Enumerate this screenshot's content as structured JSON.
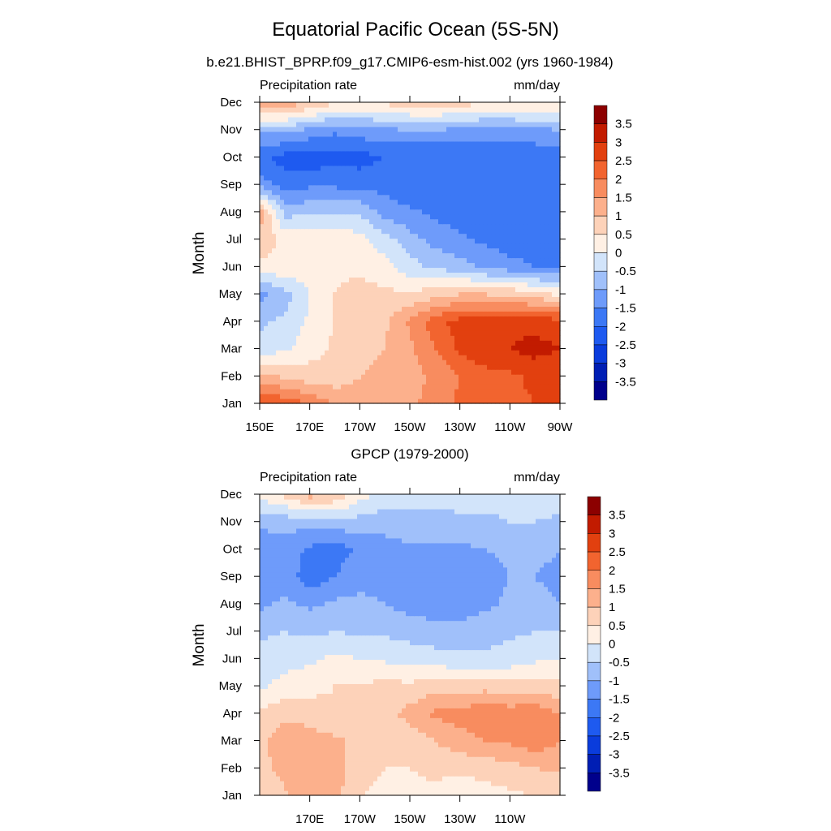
{
  "figure": {
    "title": "Equatorial Pacific Ocean (5S-5N)"
  },
  "colors": {
    "levels": [
      -3.5,
      -3,
      -2.5,
      -2,
      -1.5,
      -1,
      -0.5,
      0,
      0.5,
      1,
      1.5,
      2,
      2.5,
      3,
      3.5
    ],
    "palette": [
      "#00008c",
      "#001eb4",
      "#0a3cdc",
      "#1e5af0",
      "#3c78f5",
      "#6e9bfa",
      "#a0c0fa",
      "#d2e4fa",
      "#fff0e4",
      "#fdd2b9",
      "#fcb08c",
      "#f88c5f",
      "#f2642f",
      "#e2400f",
      "#c21b00",
      "#8c0000"
    ]
  },
  "chart_data": [
    {
      "type": "heatmap",
      "subtitle": "b.e21.BHIST_BPRP.f09_g17.CMIP6-esm-hist.002 (yrs 1960-1984)",
      "left_label": "Precipitation rate",
      "right_label": "mm/day",
      "ylabel": "Month",
      "xlabel": "",
      "x_ticks": [
        "150E",
        "170E",
        "170W",
        "150W",
        "130W",
        "110W",
        "90W"
      ],
      "y_ticks": [
        "Jan",
        "Feb",
        "Mar",
        "Apr",
        "May",
        "Jun",
        "Jul",
        "Aug",
        "Sep",
        "Oct",
        "Nov",
        "Dec"
      ],
      "x": [
        150,
        160,
        170,
        180,
        190,
        200,
        210,
        220,
        230,
        240,
        250,
        260,
        270
      ],
      "y": [
        "Jan",
        "Feb",
        "Mar",
        "Apr",
        "May",
        "Jun",
        "Jul",
        "Aug",
        "Sep",
        "Oct",
        "Nov",
        "Dec"
      ],
      "colorbar_labels": [
        "3.5",
        "3",
        "2.5",
        "2",
        "1.5",
        "1",
        "0.5",
        "0",
        "-0.5",
        "-1",
        "-1.5",
        "-2",
        "-2.5",
        "-3",
        "-3.5"
      ],
      "z": [
        [
          2.6,
          2.3,
          2.0,
          1.4,
          1.2,
          1.3,
          1.4,
          1.7,
          2.1,
          2.3,
          2.4,
          2.5,
          2.6
        ],
        [
          1.2,
          0.9,
          0.7,
          0.7,
          1.0,
          1.2,
          1.3,
          1.6,
          2.0,
          2.3,
          2.4,
          2.6,
          2.7
        ],
        [
          -0.3,
          -0.1,
          0.3,
          0.6,
          0.8,
          1.0,
          1.4,
          2.0,
          2.6,
          2.9,
          3.0,
          3.2,
          3.0
        ],
        [
          -0.6,
          -0.4,
          0.1,
          0.5,
          0.7,
          0.9,
          1.6,
          2.3,
          2.7,
          2.8,
          2.9,
          2.8,
          2.7
        ],
        [
          -1.2,
          -0.7,
          0.0,
          0.5,
          0.7,
          0.6,
          0.6,
          0.8,
          1.0,
          1.0,
          0.9,
          0.7,
          0.4
        ],
        [
          0.3,
          0.4,
          0.3,
          0.4,
          0.4,
          0.2,
          -0.3,
          -0.6,
          -0.8,
          -1.1,
          -1.3,
          -1.5,
          -1.6
        ],
        [
          0.9,
          0.3,
          0.3,
          0.4,
          0.2,
          -0.3,
          -0.8,
          -1.2,
          -1.4,
          -1.6,
          -1.8,
          -1.9,
          -1.8
        ],
        [
          1.3,
          -0.7,
          -0.6,
          -0.5,
          -0.6,
          -1.2,
          -1.4,
          -1.6,
          -1.8,
          -1.9,
          -2.0,
          -2.0,
          -1.9
        ],
        [
          -1.2,
          -1.8,
          -1.6,
          -1.6,
          -1.7,
          -1.7,
          -1.9,
          -2.0,
          -2.0,
          -2.0,
          -2.0,
          -2.0,
          -1.9
        ],
        [
          -1.9,
          -2.2,
          -2.3,
          -2.2,
          -2.2,
          -2.0,
          -2.0,
          -2.0,
          -1.9,
          -1.9,
          -1.9,
          -1.9,
          -1.8
        ],
        [
          -1.0,
          -0.8,
          -1.1,
          -1.4,
          -1.2,
          -1.1,
          -1.0,
          -1.0,
          -1.1,
          -1.2,
          -1.2,
          -1.1,
          -1.0
        ],
        [
          1.7,
          1.4,
          1.0,
          0.6,
          0.5,
          0.6,
          0.8,
          0.9,
          0.7,
          0.6,
          0.6,
          0.6,
          0.5
        ]
      ]
    },
    {
      "type": "heatmap",
      "subtitle": "GPCP (1979-2000)",
      "left_label": "Precipitation rate",
      "right_label": "mm/day",
      "ylabel": "Month",
      "xlabel": "",
      "x_ticks": [
        "170E",
        "170W",
        "150W",
        "130W",
        "110W"
      ],
      "y_ticks": [
        "Jan",
        "Feb",
        "Mar",
        "Apr",
        "May",
        "Jun",
        "Jul",
        "Aug",
        "Sep",
        "Oct",
        "Nov",
        "Dec"
      ],
      "x": [
        150,
        160,
        170,
        180,
        190,
        200,
        210,
        220,
        230,
        240,
        250,
        260,
        270
      ],
      "y": [
        "Jan",
        "Feb",
        "Mar",
        "Apr",
        "May",
        "Jun",
        "Jul",
        "Aug",
        "Sep",
        "Oct",
        "Nov",
        "Dec"
      ],
      "colorbar_labels": [
        "3.5",
        "3",
        "2.5",
        "2",
        "1.5",
        "1",
        "0.5",
        "0",
        "-0.5",
        "-1",
        "-1.5",
        "-2",
        "-2.5",
        "-3",
        "-3.5"
      ],
      "z": [
        [
          0.6,
          0.9,
          1.4,
          1.2,
          0.5,
          0.4,
          0.4,
          0.4,
          0.2,
          0.3,
          0.4,
          0.5,
          0.6
        ],
        [
          0.8,
          1.2,
          1.3,
          1.2,
          0.7,
          0.5,
          0.5,
          0.6,
          0.6,
          0.7,
          0.8,
          1.0,
          1.1
        ],
        [
          0.9,
          1.3,
          1.2,
          1.1,
          0.9,
          0.6,
          0.7,
          1.0,
          1.3,
          1.5,
          1.6,
          1.8,
          1.5
        ],
        [
          0.6,
          0.9,
          0.8,
          0.6,
          0.9,
          0.8,
          1.2,
          1.6,
          1.7,
          1.9,
          1.8,
          1.9,
          1.5
        ],
        [
          -0.1,
          0.2,
          0.3,
          0.5,
          0.5,
          0.7,
          0.6,
          0.8,
          0.8,
          0.8,
          0.7,
          0.7,
          0.6
        ],
        [
          -0.3,
          -0.2,
          -0.1,
          0.1,
          0.0,
          -0.1,
          -0.2,
          -0.3,
          -0.4,
          -0.4,
          -0.3,
          -0.1,
          0.0
        ],
        [
          -0.6,
          -0.5,
          -0.6,
          -0.5,
          -0.6,
          -0.6,
          -0.7,
          -0.8,
          -0.8,
          -0.7,
          -0.6,
          -0.5,
          -0.5
        ],
        [
          -1.1,
          -0.9,
          -1.1,
          -0.9,
          -0.9,
          -1.0,
          -1.2,
          -1.3,
          -1.3,
          -1.1,
          -0.9,
          -0.8,
          -1.0
        ],
        [
          -1.4,
          -1.2,
          -1.8,
          -1.5,
          -1.1,
          -1.2,
          -1.3,
          -1.4,
          -1.3,
          -1.2,
          -1.0,
          -1.0,
          -1.2
        ],
        [
          -1.3,
          -1.2,
          -1.6,
          -1.8,
          -1.4,
          -1.2,
          -1.1,
          -1.1,
          -1.1,
          -1.0,
          -0.9,
          -0.8,
          -1.0
        ],
        [
          -0.9,
          -0.8,
          -0.8,
          -0.7,
          -0.7,
          -0.8,
          -0.7,
          -0.7,
          -0.6,
          -0.6,
          -0.5,
          -0.5,
          -0.6
        ],
        [
          0.2,
          0.6,
          1.2,
          0.9,
          0.2,
          -0.2,
          -0.2,
          -0.3,
          -0.3,
          -0.3,
          -0.3,
          -0.2,
          -0.3
        ]
      ]
    }
  ]
}
